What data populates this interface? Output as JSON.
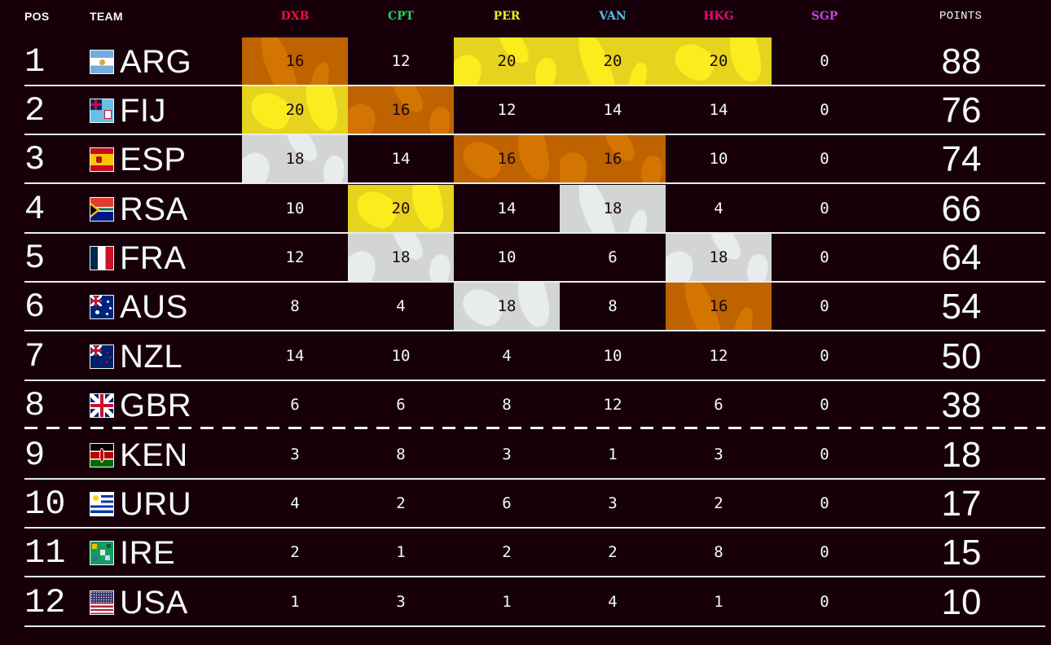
{
  "header": {
    "pos": "POS",
    "team": "TEAM",
    "points": "POINTS",
    "events": [
      {
        "code": "DXB",
        "color": "#e6123c"
      },
      {
        "code": "CPT",
        "color": "#1fd45e"
      },
      {
        "code": "PER",
        "color": "#f2ec1e"
      },
      {
        "code": "VAN",
        "color": "#4cc3ea"
      },
      {
        "code": "HKG",
        "color": "#e0106e"
      },
      {
        "code": "SGP",
        "color": "#c246d6"
      }
    ]
  },
  "medal_colors": {
    "gold": "#e6d31e",
    "silver": "#d3d5d5",
    "bronze": "#bf6200"
  },
  "rows": [
    {
      "pos": "1",
      "team": "ARG",
      "flag": "argentina-flag-icon",
      "scores": [
        "16",
        "12",
        "20",
        "20",
        "20",
        "0"
      ],
      "medals": [
        "bronze",
        "",
        "gold",
        "gold",
        "gold",
        ""
      ],
      "points": "88"
    },
    {
      "pos": "2",
      "team": "FIJ",
      "flag": "fiji-flag-icon",
      "scores": [
        "20",
        "16",
        "12",
        "14",
        "14",
        "0"
      ],
      "medals": [
        "gold",
        "bronze",
        "",
        "",
        "",
        ""
      ],
      "points": "76"
    },
    {
      "pos": "3",
      "team": "ESP",
      "flag": "spain-flag-icon",
      "scores": [
        "18",
        "14",
        "16",
        "16",
        "10",
        "0"
      ],
      "medals": [
        "silver",
        "",
        "bronze",
        "bronze",
        "",
        ""
      ],
      "points": "74"
    },
    {
      "pos": "4",
      "team": "RSA",
      "flag": "south-africa-flag-icon",
      "scores": [
        "10",
        "20",
        "14",
        "18",
        "4",
        "0"
      ],
      "medals": [
        "",
        "gold",
        "",
        "silver",
        "",
        ""
      ],
      "points": "66"
    },
    {
      "pos": "5",
      "team": "FRA",
      "flag": "france-flag-icon",
      "scores": [
        "12",
        "18",
        "10",
        "6",
        "18",
        "0"
      ],
      "medals": [
        "",
        "silver",
        "",
        "",
        "silver",
        ""
      ],
      "points": "64"
    },
    {
      "pos": "6",
      "team": "AUS",
      "flag": "australia-flag-icon",
      "scores": [
        "8",
        "4",
        "18",
        "8",
        "16",
        "0"
      ],
      "medals": [
        "",
        "",
        "silver",
        "",
        "bronze",
        ""
      ],
      "points": "54"
    },
    {
      "pos": "7",
      "team": "NZL",
      "flag": "new-zealand-flag-icon",
      "scores": [
        "14",
        "10",
        "4",
        "10",
        "12",
        "0"
      ],
      "medals": [
        "",
        "",
        "",
        "",
        "",
        ""
      ],
      "points": "50"
    },
    {
      "pos": "8",
      "team": "GBR",
      "flag": "great-britain-flag-icon",
      "scores": [
        "6",
        "6",
        "8",
        "12",
        "6",
        "0"
      ],
      "medals": [
        "",
        "",
        "",
        "",
        "",
        ""
      ],
      "points": "38"
    },
    {
      "pos": "9",
      "team": "KEN",
      "flag": "kenya-flag-icon",
      "scores": [
        "3",
        "8",
        "3",
        "1",
        "3",
        "0"
      ],
      "medals": [
        "",
        "",
        "",
        "",
        "",
        ""
      ],
      "points": "18"
    },
    {
      "pos": "10",
      "team": "URU",
      "flag": "uruguay-flag-icon",
      "scores": [
        "4",
        "2",
        "6",
        "3",
        "2",
        "0"
      ],
      "medals": [
        "",
        "",
        "",
        "",
        "",
        ""
      ],
      "points": "17"
    },
    {
      "pos": "11",
      "team": "IRE",
      "flag": "ireland-flag-icon",
      "scores": [
        "2",
        "1",
        "2",
        "2",
        "8",
        "0"
      ],
      "medals": [
        "",
        "",
        "",
        "",
        "",
        ""
      ],
      "points": "15"
    },
    {
      "pos": "12",
      "team": "USA",
      "flag": "usa-flag-icon",
      "scores": [
        "1",
        "3",
        "1",
        "4",
        "1",
        "0"
      ],
      "medals": [
        "",
        "",
        "",
        "",
        "",
        ""
      ],
      "points": "10"
    }
  ]
}
